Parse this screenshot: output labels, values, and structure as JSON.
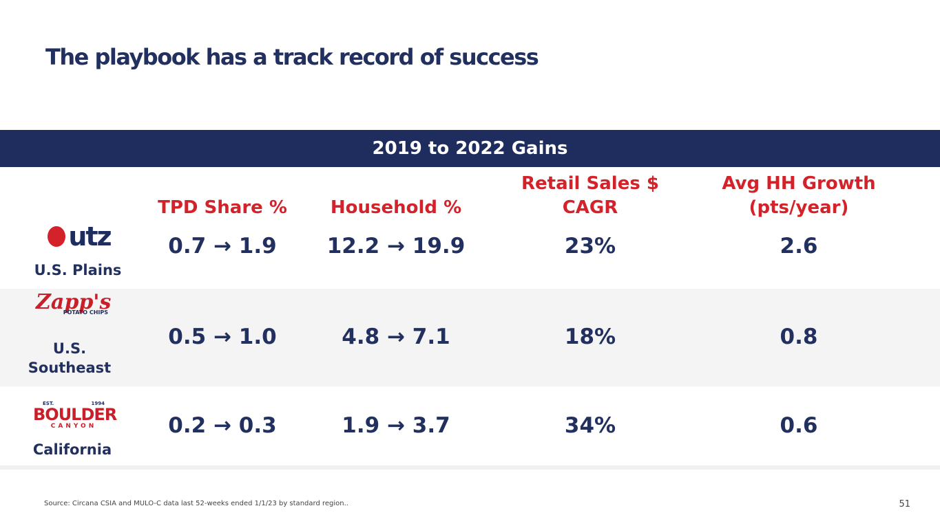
{
  "header": {
    "title": "The playbook has a track record of success"
  },
  "table": {
    "banner": "2019 to 2022 Gains",
    "headers": [
      "TPD Share %",
      "Household %",
      "Retail Sales $ CAGR",
      "Avg HH Growth (pts/year)"
    ],
    "rows": [
      {
        "logo": [
          "utz"
        ],
        "region": "U.S. Plains",
        "cells": [
          "0.7 → 1.9",
          "12.2 → 19.9",
          "23%",
          "2.6"
        ]
      },
      {
        "logo": [
          "Zapp's",
          "POTATO CHIPS"
        ],
        "region": "U.S. Southeast",
        "cells": [
          "0.5 → 1.0",
          "4.8 → 7.1",
          "18%",
          "0.8"
        ]
      },
      {
        "logo": [
          "EST.",
          "1994",
          "BOULDER",
          "CANYON"
        ],
        "region": "California",
        "cells": [
          "0.2 → 0.3",
          "1.9 → 3.7",
          "34%",
          "0.6"
        ]
      }
    ]
  },
  "footer": {
    "source": "Source: Circana CSIA and MULO-C data last 52-weeks ended 1/1/23 by standard region..",
    "page": 51
  }
}
